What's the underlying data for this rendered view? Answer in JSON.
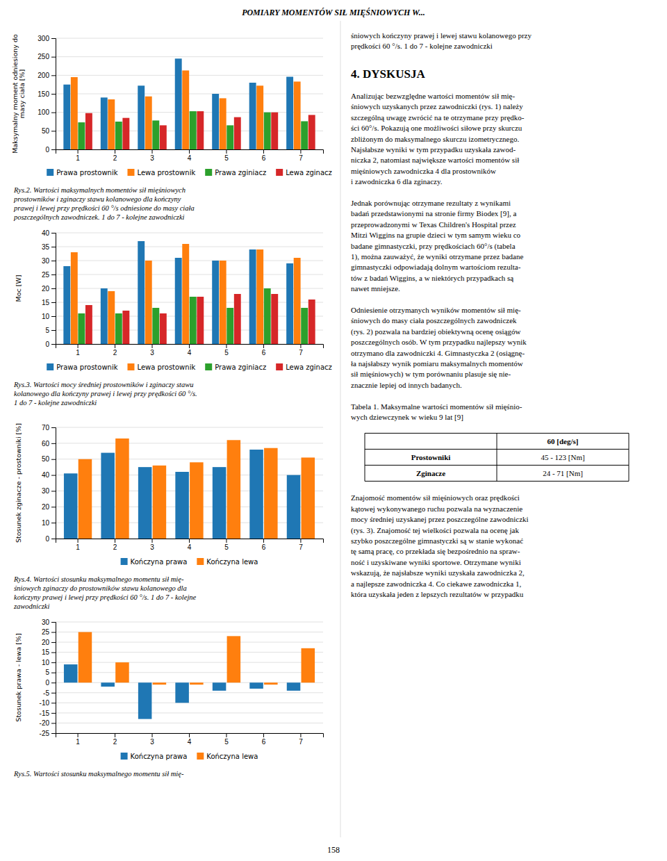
{
  "title": "POMIARY MOMENTÓW SIŁ MIĘŚNIOWYCH W...",
  "chart_data": [
    {
      "type": "bar",
      "title": "Rys.2. Wartości maksymalnych momentów sił mięśniowych\nprostowników i zginaczy stawu kolanowego dla kończyny\nprawej i lewej przy prędkości 60 °/s odniesione do masy ciała\nposzczególnych zawodniczek. 1 do 7 - kolejne zawodniczki",
      "ylabel": "Maksymalny moment odniesiony do\nmasy ciała [%]",
      "categories": [
        1,
        2,
        3,
        4,
        5,
        6,
        7
      ],
      "series": [
        {
          "name": "Prawa prostownik",
          "values": [
            175,
            140,
            172,
            245,
            150,
            180,
            196
          ]
        },
        {
          "name": "Lewa prostownik",
          "values": [
            195,
            135,
            143,
            213,
            138,
            172,
            183
          ]
        },
        {
          "name": "Prawa zginiacz",
          "values": [
            73,
            75,
            78,
            103,
            65,
            100,
            76
          ]
        },
        {
          "name": "Lewa zginacz",
          "values": [
            98,
            85,
            65,
            103,
            87,
            100,
            93
          ]
        }
      ],
      "ylim": [
        0,
        300
      ],
      "yticks": [
        0,
        50,
        100,
        150,
        200,
        250,
        300
      ],
      "grid": true,
      "legend": "bottom"
    },
    {
      "type": "bar",
      "title": "Rys.3. Wartości mocy średniej prostowników i zginaczy stawu\nkolanowego dla kończyny prawej i lewej przy prędkości 60 °/s.\n1 do 7 - kolejne zawodniczki",
      "ylabel": "Moc [W]",
      "categories": [
        1,
        2,
        3,
        4,
        5,
        6,
        7
      ],
      "series": [
        {
          "name": "Prawa prostownik",
          "values": [
            28,
            20,
            37,
            31,
            30,
            34,
            29
          ]
        },
        {
          "name": "Lewa prostownik",
          "values": [
            33,
            19,
            30,
            36,
            30,
            34,
            31
          ]
        },
        {
          "name": "Prawa zginiacz",
          "values": [
            11,
            11,
            13,
            17,
            13,
            20,
            13
          ]
        },
        {
          "name": "Lewa zginacz",
          "values": [
            14,
            12,
            11,
            17,
            18,
            18,
            16
          ]
        }
      ],
      "ylim": [
        0,
        40
      ],
      "yticks": [
        0,
        5,
        10,
        15,
        20,
        25,
        30,
        35,
        40
      ],
      "grid": true,
      "legend": "bottom"
    },
    {
      "type": "bar",
      "title": "Rys.4. Wartości stosunku maksymalnego momentu sił mię-\nśniowych zginaczy do prostowników stawu kolanowego dla\nkończyny prawej i lewej przy prędkości 60 °/s. 1 do 7 - kolejne\nzawodniczki",
      "ylabel": "Stosunek zginacze - prostowniki [%]",
      "categories": [
        1,
        2,
        3,
        4,
        5,
        6,
        7
      ],
      "series": [
        {
          "name": "Kończyna prawa",
          "values": [
            41,
            54,
            45,
            42,
            45,
            56,
            40
          ]
        },
        {
          "name": "Kończyna lewa",
          "values": [
            50,
            63,
            46,
            48,
            62,
            57,
            51
          ]
        }
      ],
      "ylim": [
        0,
        70
      ],
      "yticks": [
        0,
        10,
        20,
        30,
        40,
        50,
        60,
        70
      ],
      "grid": true,
      "legend": "bottom"
    },
    {
      "type": "bar",
      "title": "Rys.5. Wartości stosunku maksymalnego momentu sił mię-",
      "ylabel": "Stosunek prawa - lewa [%]",
      "categories": [
        1,
        2,
        3,
        4,
        5,
        6,
        7
      ],
      "series": [
        {
          "name": "Kończyna prawa",
          "values": [
            9,
            -2,
            -18,
            -10,
            -4,
            -3,
            -4
          ]
        },
        {
          "name": "Kończyna lewa",
          "values": [
            25,
            10,
            -1,
            -1,
            23,
            -1,
            17
          ]
        }
      ],
      "ylim": [
        -25,
        30
      ],
      "yticks": [
        -25,
        -20,
        -15,
        -10,
        -5,
        0,
        5,
        10,
        15,
        20,
        25,
        30
      ],
      "grid": true,
      "legend": "bottom"
    }
  ],
  "text": {
    "header": [
      "śniowych kończyny prawej i lewej stawu kolanowego przy",
      "prędkości 60 °/s. 1 do 7 - kolejne zawodniczki"
    ],
    "heading": "4. DYSKUSJA",
    "discussion": [
      [
        "Analizując bezwzględne wartości momentów sił mię-",
        "śniowych uzyskanych przez zawodniczki (rys. 1) należy",
        "szczególną uwagę zwrócić na te otrzymane przy prędko-",
        "ści 60°/s. Pokazują one możliwości siłowe przy skurczu",
        "zbliżonym do maksymalnego skurczu izometrycznego.",
        "Najsłabsze wyniki w tym przypadku uzyskała zawod-",
        "niczka 2, natomiast największe wartości momentów sił",
        "mięśniowych zawodniczka 4 dla prostowników",
        "i zawodniczka 6 dla zginaczy."
      ],
      [
        "Jednak porównując otrzymane rezultaty z wynikami",
        "badań przedstawionymi na stronie firmy Biodex [9], a",
        "przeprowadzonymi w Texas Children's Hospital przez",
        "Mitzi Wiggins na grupie dzieci w tym samym wieku co",
        "badane gimnastyczki, przy prędkościach 60°/s (tabela",
        "1), można zauważyć, że wyniki otrzymane przez badane",
        "gimnastyczki odpowiadają dolnym wartościom rezulta-",
        "tów z badań Wiggins, a w niektórych przypadkach są",
        "nawet mniejsze."
      ],
      [
        "Odniesienie otrzymanych wyników momentów sił mię-",
        "śniowych do masy ciała poszczególnych zawodniczek",
        "(rys. 2) pozwala na bardziej obiektywną ocenę osiągów",
        "poszczególnych osób. W tym przypadku najlepszy wynik",
        "otrzymano dla zawodniczki 4. Gimnastyczka 2 (osiągnę-",
        "ła najsłabszy wynik pomiaru maksymalnych momentów",
        "sił mięśniowych) w tym porównaniu plasuje się nie-",
        "znacznie lepiej od innych badanych."
      ],
      [
        "Tabela 1. Maksymalne wartości momentów sił mięśnio-",
        "wych dziewczynek w wieku 9 lat [9]"
      ]
    ],
    "table": {
      "header": "60 [deg/s]",
      "rows": [
        [
          "Prostowniki",
          "45 - 123 [Nm]"
        ],
        [
          "Zginacze",
          "24 - 71 [Nm]"
        ]
      ]
    },
    "after_table": [
      "Znajomość momentów sił mięśniowych oraz prędkości",
      "kątowej wykonywanego ruchu pozwala na wyznaczenie",
      "mocy średniej uzyskanej przez poszczególne zawodniczki",
      "(rys. 3). Znajomość tej wielkości pozwala na ocenę jak",
      "szybko poszczególne gimnastyczki są w stanie wykonać",
      "tę samą pracę, co przekłada się bezpośrednio na spraw-",
      "ność i uzyskiwane wyniki sportowe. Otrzymane wyniki",
      "wskazują, że najsłabsze wyniki uzyskała zawodniczka 2,",
      "a najlepsze zawodniczka 4. Co ciekawe zawodniczka 1,",
      "która uzyskała jeden z lepszych rezultatów w przypadku"
    ],
    "page_number": "158"
  }
}
